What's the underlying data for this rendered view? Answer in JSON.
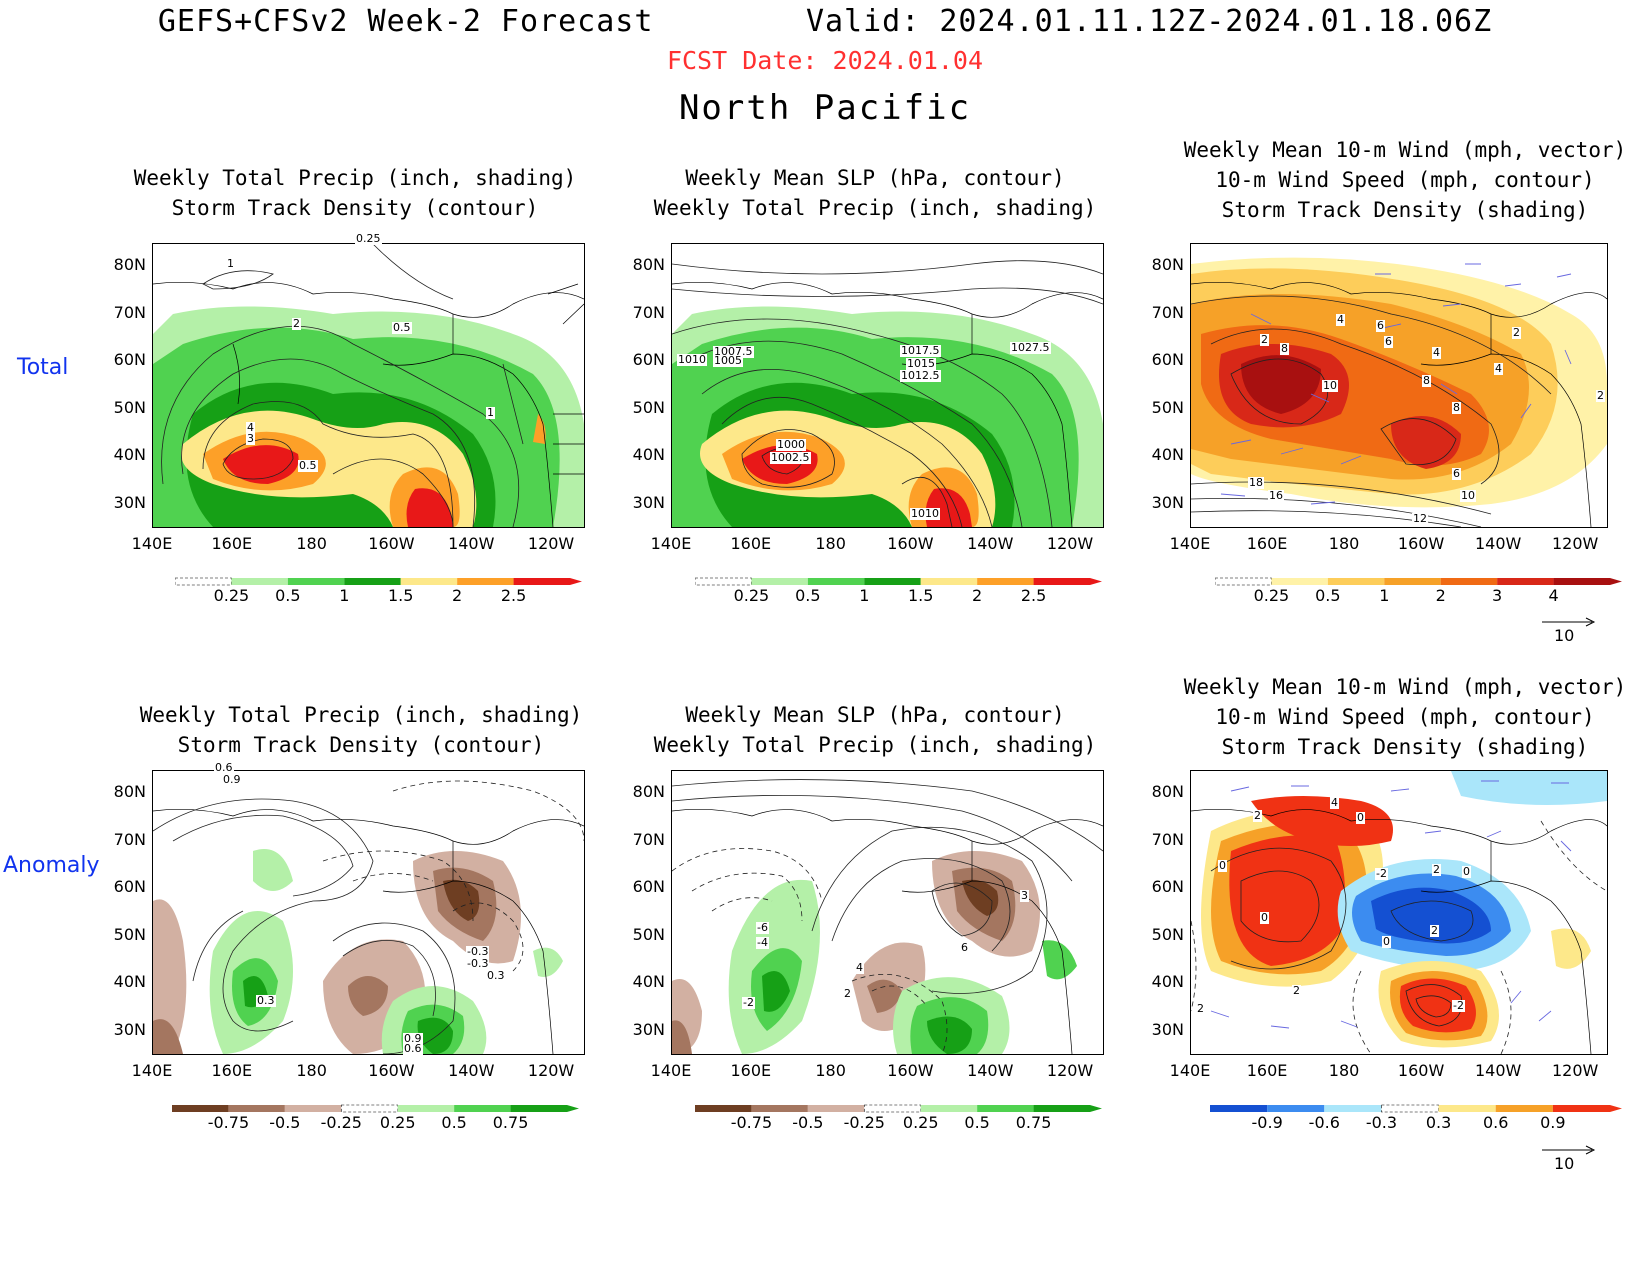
{
  "header": {
    "title_left": "GEFS+CFSv2 Week-2 Forecast",
    "title_right": "Valid: 2024.01.11.12Z-2024.01.18.06Z",
    "fcst_date": "FCST Date: 2024.01.04",
    "region": "North Pacific"
  },
  "rows": {
    "total": "Total",
    "anomaly": "Anomaly"
  },
  "axes": {
    "lat_labels": [
      "80N",
      "70N",
      "60N",
      "50N",
      "40N",
      "30N"
    ],
    "lon_labels": [
      "140E",
      "160E",
      "180",
      "160W",
      "140W",
      "120W"
    ]
  },
  "panels": {
    "p1": {
      "line1": "Weekly Total Precip (inch, shading)",
      "line2": "Storm Track Density (contour)"
    },
    "p2": {
      "line1": "Weekly Mean SLP (hPa, contour)",
      "line2": "Weekly Total Precip (inch, shading)"
    },
    "p3": {
      "line1": "Weekly Mean 10-m Wind (mph, vector)",
      "line2": "10-m Wind Speed (mph, contour)",
      "line3": "Storm Track Density (shading)"
    },
    "p4": {
      "line1": "Weekly Total Precip (inch, shading)",
      "line2": "Storm Track Density (contour)"
    },
    "p5": {
      "line1": "Weekly Mean SLP (hPa, contour)",
      "line2": "Weekly Total Precip (inch, shading)"
    },
    "p6": {
      "line1": "Weekly Mean 10-m Wind (mph, vector)",
      "line2": "10-m Wind Speed (mph, contour)",
      "line3": "Storm Track Density (shading)"
    }
  },
  "contour_labels": {
    "p1": [
      "0.25",
      "1",
      "2",
      "0.5",
      "4",
      "3",
      "0.5",
      "1"
    ],
    "p2": [
      "1010",
      "1007.5",
      "1005",
      "1017.5",
      "1015",
      "1012.5",
      "1027.5",
      "1000",
      "1002.5",
      "1010"
    ],
    "p3": [
      "2",
      "8",
      "4",
      "6",
      "6",
      "4",
      "2",
      "4",
      "10",
      "8",
      "8",
      "18",
      "16",
      "6",
      "10",
      "12",
      "2"
    ],
    "p4": [
      "0.6",
      "0.9",
      "-0.3",
      "-0.3",
      "0.3",
      "0.9",
      "0.6",
      "0.3"
    ],
    "p5": [
      "-6",
      "-4",
      "4",
      "2",
      "-2",
      "6",
      "3"
    ],
    "p6": [
      "2",
      "4",
      "0",
      "0",
      "0",
      "2",
      "-2",
      "0",
      "2",
      "0",
      "2",
      "-2",
      "2"
    ]
  },
  "colorbars": {
    "precip_total": {
      "labels": [
        "0.25",
        "0.5",
        "1",
        "1.5",
        "2",
        "2.5"
      ],
      "colors": [
        "#ffffff",
        "#b4f0a8",
        "#50d250",
        "#16a016",
        "#fde88a",
        "#fda028",
        "#e81818"
      ]
    },
    "storm_total": {
      "labels": [
        "0.25",
        "0.5",
        "1",
        "2",
        "3",
        "4"
      ],
      "colors": [
        "#ffffff",
        "#fff2a8",
        "#fdcd5a",
        "#f6a128",
        "#f06a14",
        "#d82818",
        "#a81010"
      ]
    },
    "precip_anom": {
      "labels": [
        "-0.75",
        "-0.5",
        "-0.25",
        "0.25",
        "0.5",
        "0.75"
      ],
      "colors": [
        "#6e3e22",
        "#a47660",
        "#d2b0a2",
        "#ffffff",
        "#b4f0a8",
        "#50d250",
        "#16a016"
      ]
    },
    "storm_anom": {
      "labels": [
        "-0.9",
        "-0.6",
        "-0.3",
        "0.3",
        "0.6",
        "0.9"
      ],
      "colors": [
        "#1450d2",
        "#3c8cf0",
        "#aae6fa",
        "#ffffff",
        "#fde88a",
        "#f6a128",
        "#f03214"
      ]
    }
  },
  "vector_ref": "10"
}
